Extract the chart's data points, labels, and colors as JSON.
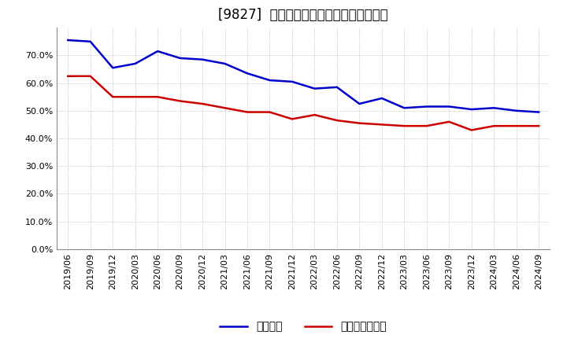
{
  "title": "[9827]  固定比率、固定長期適合率の推移",
  "line1_label": "固定比率",
  "line2_label": "固定長期適合率",
  "line1_color": "#0000cc",
  "line2_color": "#cc0000",
  "x_labels": [
    "2019/06",
    "2019/09",
    "2019/12",
    "2020/03",
    "2020/06",
    "2020/09",
    "2020/12",
    "2021/03",
    "2021/06",
    "2021/09",
    "2021/12",
    "2022/03",
    "2022/06",
    "2022/09",
    "2022/12",
    "2023/03",
    "2023/06",
    "2023/09",
    "2023/12",
    "2024/03",
    "2024/06",
    "2024/09"
  ],
  "line1_values": [
    75.5,
    75.0,
    65.5,
    67.0,
    71.5,
    69.0,
    68.5,
    67.0,
    63.5,
    61.0,
    60.5,
    58.0,
    58.5,
    52.5,
    54.5,
    51.0,
    51.5,
    51.5,
    50.5,
    51.0,
    50.0,
    49.5
  ],
  "line2_values": [
    62.5,
    62.5,
    55.0,
    55.0,
    55.0,
    53.5,
    52.5,
    51.0,
    49.5,
    49.5,
    47.0,
    48.5,
    46.5,
    45.5,
    45.0,
    44.5,
    44.5,
    46.0,
    43.0,
    44.5,
    44.5,
    44.5
  ],
  "ylim": [
    0,
    80
  ],
  "yticks": [
    0,
    10,
    20,
    30,
    40,
    50,
    60,
    70
  ],
  "background_color": "#ffffff",
  "plot_bg_color": "#ffffff",
  "grid_color": "#aaaaaa",
  "line_width": 1.8,
  "title_fontsize": 12,
  "legend_fontsize": 10,
  "tick_fontsize": 8
}
